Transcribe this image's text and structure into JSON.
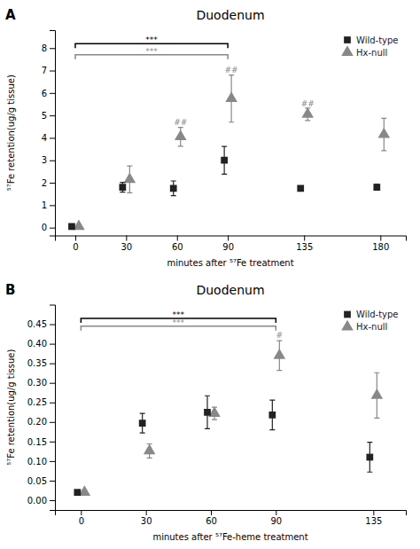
{
  "chart_data": [
    {
      "type": "scatter",
      "panel_label": "A",
      "title": "Duodenum",
      "x_label": "minutes after ⁵⁷Fe treatment",
      "y_label": "⁵⁷Fe retention(ug/g tissue)",
      "x": [
        0,
        30,
        60,
        90,
        135,
        180
      ],
      "xlim": [
        -12,
        195
      ],
      "xticks": [
        0,
        30,
        60,
        90,
        135,
        180
      ],
      "ylim": [
        -0.35,
        8.8
      ],
      "yticks": [
        0,
        1,
        2,
        3,
        4,
        5,
        6,
        7,
        8
      ],
      "grid": false,
      "legend": "upper right",
      "series": [
        {
          "name": "Wild-type",
          "color": "#222222",
          "marker": "square",
          "values": [
            0.05,
            1.8,
            1.75,
            3.0,
            1.75,
            1.8
          ],
          "errors": [
            0.05,
            0.22,
            0.33,
            0.62,
            0.08,
            0.13
          ]
        },
        {
          "name": "Hx-null",
          "color": "#888888",
          "marker": "triangle",
          "values": [
            0.05,
            2.15,
            4.05,
            5.75,
            5.05,
            4.15
          ],
          "errors": [
            0.05,
            0.6,
            0.42,
            1.05,
            0.28,
            0.72
          ]
        }
      ],
      "brackets": [
        {
          "x1": 0,
          "x2": 90,
          "y": 8.2,
          "label": "***",
          "color": "#000000"
        },
        {
          "x1": 0,
          "x2": 90,
          "y": 7.7,
          "label": "***",
          "color": "#888888"
        }
      ],
      "annotations": [
        {
          "text": "##",
          "x": 60,
          "y": 4.52,
          "color": "#888888"
        },
        {
          "text": "##",
          "x": 90,
          "y": 6.85,
          "color": "#888888"
        },
        {
          "text": "##",
          "x": 135,
          "y": 5.38,
          "color": "#888888"
        }
      ]
    },
    {
      "type": "scatter",
      "panel_label": "B",
      "title": "Duodenum",
      "x_label": "minutes after ⁵⁷Fe-heme treatment",
      "y_label": "⁵⁷Fe retention(ug/g tissue)",
      "x": [
        0,
        30,
        60,
        90,
        135
      ],
      "xlim": [
        -12,
        150
      ],
      "xticks": [
        0,
        30,
        60,
        90,
        135
      ],
      "ylim": [
        -0.025,
        0.5
      ],
      "yticks": [
        {
          "value": 0,
          "label": "0.00"
        },
        0.05,
        {
          "value": 0.1,
          "label": "0.10"
        },
        0.15,
        {
          "value": 0.2,
          "label": "0.20"
        },
        0.25,
        {
          "value": 0.3,
          "label": "0.30"
        },
        0.35,
        {
          "value": 0.4,
          "label": "0.40"
        },
        0.45
      ],
      "grid": false,
      "legend": "upper right",
      "series": [
        {
          "name": "Wild-type",
          "color": "#222222",
          "marker": "square",
          "values": [
            0.02,
            0.197,
            0.225,
            0.218,
            0.11
          ],
          "errors": [
            0.005,
            0.025,
            0.042,
            0.038,
            0.038
          ]
        },
        {
          "name": "Hx-null",
          "color": "#888888",
          "marker": "triangle",
          "values": [
            0.02,
            0.126,
            0.222,
            0.37,
            0.268
          ],
          "errors": [
            0.005,
            0.018,
            0.016,
            0.038,
            0.058
          ]
        }
      ],
      "brackets": [
        {
          "x1": 0,
          "x2": 90,
          "y": 0.465,
          "label": "***",
          "color": "#000000"
        },
        {
          "x1": 0,
          "x2": 90,
          "y": 0.445,
          "label": "***",
          "color": "#888888"
        }
      ],
      "annotations": [
        {
          "text": "#",
          "x": 90,
          "y": 0.413,
          "color": "#888888"
        }
      ]
    }
  ]
}
